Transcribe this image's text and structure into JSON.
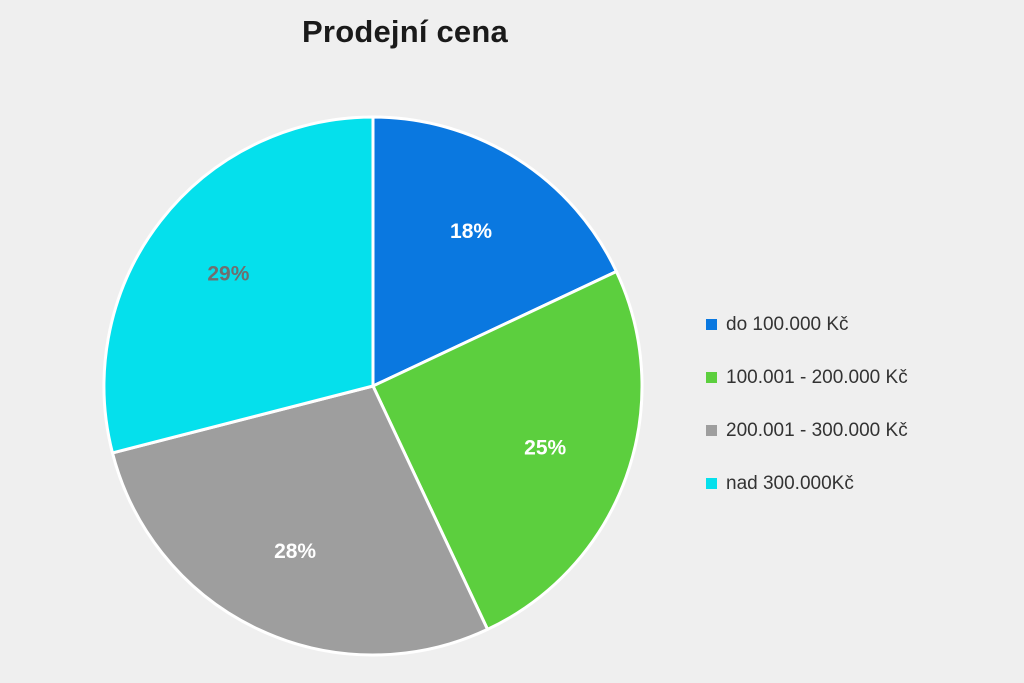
{
  "chart_data": {
    "type": "pie",
    "title": "Prodejní cena",
    "categories": [
      "do 100.000 Kč",
      "100.001 - 200.000 Kč",
      "200.001 - 300.000 Kč",
      "nad 300.000Kč"
    ],
    "values": [
      18,
      25,
      28,
      29
    ],
    "value_labels": [
      "18%",
      "25%",
      "28%",
      "29%"
    ],
    "colors": [
      "#0a78e0",
      "#5ccf3e",
      "#9e9e9e",
      "#05e0ec"
    ],
    "label_colors": [
      "#ffffff",
      "#ffffff",
      "#ffffff",
      "#6f6f6f"
    ],
    "start_angle_deg": 0,
    "direction": "clockwise",
    "legend_position": "right"
  }
}
